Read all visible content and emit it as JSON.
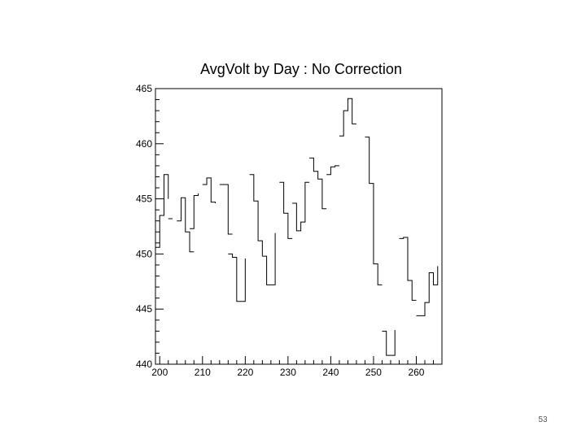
{
  "slide": {
    "page_number": "53"
  },
  "chart_data": {
    "type": "line",
    "title": "AvgVolt by Day : No Correction",
    "xlabel": "",
    "ylabel": "",
    "xlim": [
      199,
      266
    ],
    "ylim": [
      440,
      465
    ],
    "x_ticks": [
      200,
      210,
      220,
      230,
      240,
      250,
      260
    ],
    "y_ticks": [
      440,
      445,
      450,
      455,
      460,
      465
    ],
    "grid": false,
    "style": "step histogram with gaps for missing days",
    "series": [
      {
        "color": "#000000",
        "segments": [
          {
            "x": [
              199,
              200,
              201,
              202
            ],
            "y": [
              450.6,
              453.5,
              457.2,
              455.0
            ]
          },
          {
            "x": [
              202,
              203
            ],
            "y": [
              453.2,
              453.2
            ]
          },
          {
            "x": [
              204,
              205,
              206,
              207,
              208
            ],
            "y": [
              453.0,
              455.1,
              452.0,
              450.2,
              450.2
            ]
          },
          {
            "x": [
              207,
              208,
              209
            ],
            "y": [
              452.3,
              455.3,
              455.5
            ]
          },
          {
            "x": [
              210,
              211,
              212,
              213
            ],
            "y": [
              456.3,
              456.9,
              454.7,
              454.6
            ]
          },
          {
            "x": [
              214,
              215,
              216,
              217
            ],
            "y": [
              456.3,
              456.3,
              451.8,
              451.8
            ]
          },
          {
            "x": [
              216,
              217,
              218,
              219,
              220
            ],
            "y": [
              450.0,
              449.7,
              445.7,
              445.7,
              449.6
            ]
          },
          {
            "x": [
              221,
              222,
              223,
              224
            ],
            "y": [
              457.2,
              454.8,
              451.2,
              449.8
            ]
          },
          {
            "x": [
              224,
              225,
              226,
              227
            ],
            "y": [
              449.8,
              447.2,
              447.2,
              451.9
            ]
          },
          {
            "x": [
              228,
              229,
              230,
              231
            ],
            "y": [
              456.5,
              453.7,
              451.4,
              451.4
            ]
          },
          {
            "x": [
              231,
              232,
              233,
              234,
              235
            ],
            "y": [
              454.6,
              452.1,
              452.9,
              456.5,
              456.5
            ]
          },
          {
            "x": [
              235,
              236,
              237,
              238,
              239
            ],
            "y": [
              458.7,
              457.5,
              456.8,
              454.1,
              454.1
            ]
          },
          {
            "x": [
              239,
              240,
              241,
              242
            ],
            "y": [
              457.2,
              457.9,
              458.0,
              458.0
            ]
          },
          {
            "x": [
              242,
              243,
              244,
              245,
              246
            ],
            "y": [
              460.7,
              463.0,
              464.1,
              461.8,
              461.8
            ]
          },
          {
            "x": [
              248,
              249,
              250,
              251,
              252
            ],
            "y": [
              460.6,
              456.4,
              449.1,
              447.2,
              447.2
            ]
          },
          {
            "x": [
              252,
              253,
              254,
              255
            ],
            "y": [
              443.0,
              440.8,
              440.8,
              443.1
            ]
          },
          {
            "x": [
              256,
              257,
              258,
              259,
              260
            ],
            "y": [
              451.4,
              451.5,
              447.6,
              445.8,
              445.8
            ]
          },
          {
            "x": [
              260,
              261,
              262,
              263,
              264,
              265
            ],
            "y": [
              444.4,
              444.4,
              445.6,
              448.3,
              447.2,
              448.9
            ]
          }
        ]
      }
    ]
  }
}
